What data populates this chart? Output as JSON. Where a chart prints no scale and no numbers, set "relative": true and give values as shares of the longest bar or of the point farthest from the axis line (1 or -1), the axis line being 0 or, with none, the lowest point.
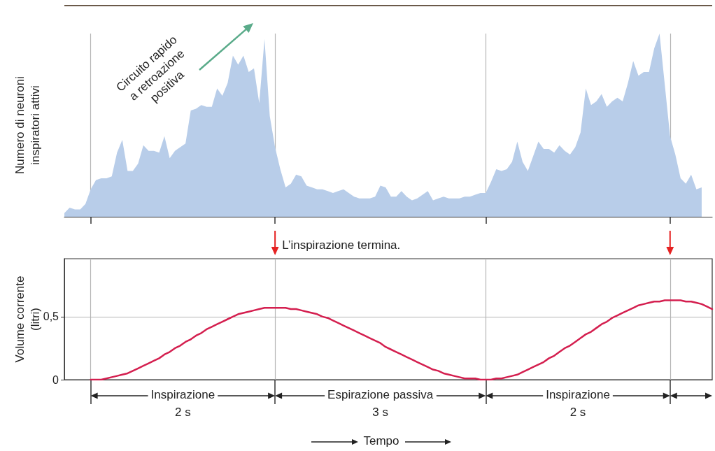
{
  "chart_data": [
    {
      "type": "area",
      "ylabel": "Numero di neuroni inspiratori attivi",
      "relative": true,
      "grid": "x",
      "tick_labels": false,
      "annotations": [
        "Circuito rapido a retroazione positiva"
      ],
      "categories": [
        null,
        null,
        null,
        null,
        null,
        null,
        null,
        null,
        null,
        null,
        null,
        null,
        null,
        null,
        null,
        null,
        null,
        null,
        null,
        null,
        null,
        null,
        null,
        null,
        null,
        null,
        null,
        null,
        null,
        null,
        null,
        null,
        null,
        null,
        null,
        null,
        null,
        null,
        null,
        null,
        null,
        null,
        null,
        null,
        null,
        null,
        null,
        null,
        null,
        null,
        null,
        null,
        null,
        null,
        null,
        null,
        null,
        null,
        null,
        null,
        null,
        null,
        null,
        null,
        null,
        null,
        null,
        null,
        null,
        null,
        null,
        null,
        null,
        null,
        null,
        null,
        null,
        null,
        null,
        null,
        null,
        null,
        null,
        null,
        null,
        null,
        null,
        null,
        null,
        null,
        null,
        null,
        null,
        null,
        null,
        null,
        null,
        null,
        null,
        null,
        null,
        null,
        null,
        null,
        null,
        null,
        null,
        null,
        null,
        null,
        null,
        null,
        null,
        null,
        null,
        null,
        null,
        null,
        null,
        null,
        null,
        null,
        null,
        null
      ],
      "series": [
        {
          "color": "#b8cde9",
          "values": [
            0.02,
            0.05,
            0.04,
            0.04,
            0.07,
            0.15,
            0.2,
            0.21,
            0.21,
            0.22,
            0.35,
            0.42,
            0.25,
            0.25,
            0.29,
            0.39,
            0.36,
            0.36,
            0.35,
            0.44,
            0.32,
            0.36,
            0.38,
            0.4,
            0.58,
            0.59,
            0.61,
            0.6,
            0.6,
            0.7,
            0.66,
            0.73,
            0.88,
            0.83,
            0.88,
            0.79,
            0.81,
            0.62,
            0.97,
            0.55,
            0.38,
            0.26,
            0.16,
            0.18,
            0.23,
            0.22,
            0.17,
            0.16,
            0.15,
            0.15,
            0.14,
            0.13,
            0.14,
            0.15,
            0.13,
            0.11,
            0.1,
            0.1,
            0.1,
            0.11,
            0.17,
            0.16,
            0.11,
            0.11,
            0.14,
            0.11,
            0.09,
            0.1,
            0.12,
            0.14,
            0.09,
            0.1,
            0.11,
            0.1,
            0.1,
            0.1,
            0.11,
            0.11,
            0.12,
            0.13,
            0.13,
            0.19,
            0.26,
            0.25,
            0.26,
            0.3,
            0.41,
            0.3,
            0.25,
            0.33,
            0.41,
            0.37,
            0.37,
            0.35,
            0.39,
            0.36,
            0.34,
            0.38,
            0.46,
            0.7,
            0.61,
            0.63,
            0.67,
            0.6,
            0.63,
            0.65,
            0.63,
            0.73,
            0.85,
            0.77,
            0.79,
            0.79,
            0.92,
            1,
            0.72,
            0.44,
            0.34,
            0.21,
            0.18,
            0.23,
            0.15,
            0.16,
            null,
            null
          ]
        }
      ]
    },
    {
      "type": "line",
      "xlabel": "Tempo",
      "ylabel": "Volume corrente (litri)",
      "ylim": [
        0,
        0.96
      ],
      "yticks": [
        0,
        {
          "value": 0.5,
          "label": "0,5"
        }
      ],
      "grid": true,
      "tick_labels": "y",
      "annotations": [
        "L’inspirazione termina.",
        "Inspirazione",
        "2 s",
        "Espirazione passiva",
        "3 s",
        "Inspirazione",
        "2 s"
      ],
      "categories": [
        null,
        null,
        null,
        null,
        null,
        null,
        null,
        null,
        null,
        null,
        null,
        null,
        null,
        null,
        null,
        null,
        null,
        null,
        null,
        null,
        null,
        null,
        null,
        null,
        null,
        null,
        null,
        null,
        null,
        null,
        null,
        null,
        null,
        null,
        null,
        null,
        null,
        null,
        null,
        null,
        null,
        null,
        null,
        null,
        null,
        null,
        null,
        null,
        null,
        null,
        null,
        null,
        null,
        null,
        null,
        null,
        null,
        null,
        null,
        null,
        null,
        null,
        null,
        null,
        null,
        null,
        null,
        null,
        null,
        null,
        null,
        null,
        null,
        null,
        null,
        null,
        null,
        null,
        null,
        null,
        null,
        null,
        null,
        null,
        null,
        null,
        null,
        null,
        null,
        null,
        null,
        null,
        null,
        null,
        null,
        null,
        null,
        null,
        null,
        null,
        null,
        null,
        null,
        null,
        null,
        null,
        null,
        null,
        null,
        null,
        null,
        null,
        null,
        null,
        null,
        null,
        null,
        null,
        null,
        null,
        null,
        null,
        null,
        null
      ],
      "series": [
        {
          "color": "#d41f4f",
          "values": [
            null,
            null,
            null,
            null,
            null,
            0,
            0,
            0,
            0.01,
            0.02,
            0.03,
            0.04,
            0.05,
            0.07,
            0.09,
            0.11,
            0.13,
            0.15,
            0.17,
            0.2,
            0.22,
            0.25,
            0.27,
            0.3,
            0.32,
            0.35,
            0.37,
            0.4,
            0.42,
            0.44,
            0.46,
            0.48,
            0.5,
            0.52,
            0.53,
            0.54,
            0.55,
            0.56,
            0.57,
            0.57,
            0.57,
            0.57,
            0.57,
            0.56,
            0.56,
            0.55,
            0.54,
            0.53,
            0.52,
            0.5,
            0.49,
            0.47,
            0.45,
            0.43,
            0.41,
            0.39,
            0.37,
            0.35,
            0.33,
            0.31,
            0.29,
            0.26,
            0.24,
            0.22,
            0.2,
            0.18,
            0.16,
            0.14,
            0.12,
            0.1,
            0.08,
            0.07,
            0.05,
            0.04,
            0.03,
            0.02,
            0.01,
            0.01,
            0.01,
            0,
            0,
            0,
            0.01,
            0.01,
            0.02,
            0.03,
            0.04,
            0.06,
            0.08,
            0.1,
            0.12,
            0.14,
            0.17,
            0.19,
            0.22,
            0.25,
            0.27,
            0.3,
            0.33,
            0.36,
            0.38,
            0.41,
            0.44,
            0.46,
            0.49,
            0.51,
            0.53,
            0.55,
            0.57,
            0.59,
            0.6,
            0.61,
            0.62,
            0.62,
            0.63,
            0.63,
            0.63,
            0.63,
            0.62,
            0.62,
            0.61,
            0.6,
            0.58,
            0.56
          ]
        }
      ]
    }
  ]
}
